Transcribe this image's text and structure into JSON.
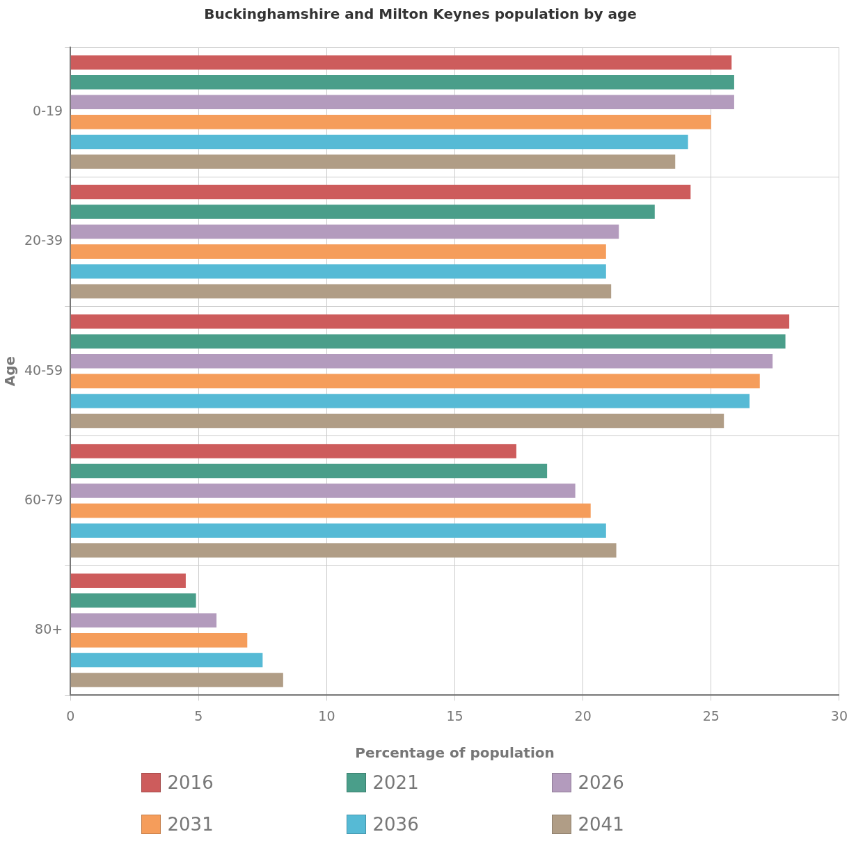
{
  "chart_data": {
    "type": "bar",
    "orientation": "horizontal",
    "title": "Buckinghamshire and Milton Keynes population by age",
    "xlabel": "Percentage of population",
    "ylabel": "Age",
    "categories": [
      "0-19",
      "20-39",
      "40-59",
      "60-79",
      "80+"
    ],
    "series": [
      {
        "name": "2016",
        "color": "#cd5c5c",
        "values": [
          25.8,
          24.2,
          28.05,
          17.4,
          4.5
        ]
      },
      {
        "name": "2021",
        "color": "#4a9e8a",
        "values": [
          25.9,
          22.8,
          27.9,
          18.6,
          4.9
        ]
      },
      {
        "name": "2026",
        "color": "#b39bbd",
        "values": [
          25.9,
          21.4,
          27.4,
          19.7,
          5.7
        ]
      },
      {
        "name": "2031",
        "color": "#f59d5b",
        "values": [
          25.0,
          20.9,
          26.9,
          20.3,
          6.9
        ]
      },
      {
        "name": "2036",
        "color": "#56bad5",
        "values": [
          24.1,
          20.9,
          26.5,
          20.9,
          7.5
        ]
      },
      {
        "name": "2041",
        "color": "#b09d86",
        "values": [
          23.6,
          21.1,
          25.5,
          21.3,
          8.3
        ]
      }
    ],
    "xlim": [
      0,
      30
    ],
    "xticks": [
      0,
      5,
      10,
      15,
      20,
      25,
      30
    ],
    "grid": true,
    "legend": "bottom"
  }
}
